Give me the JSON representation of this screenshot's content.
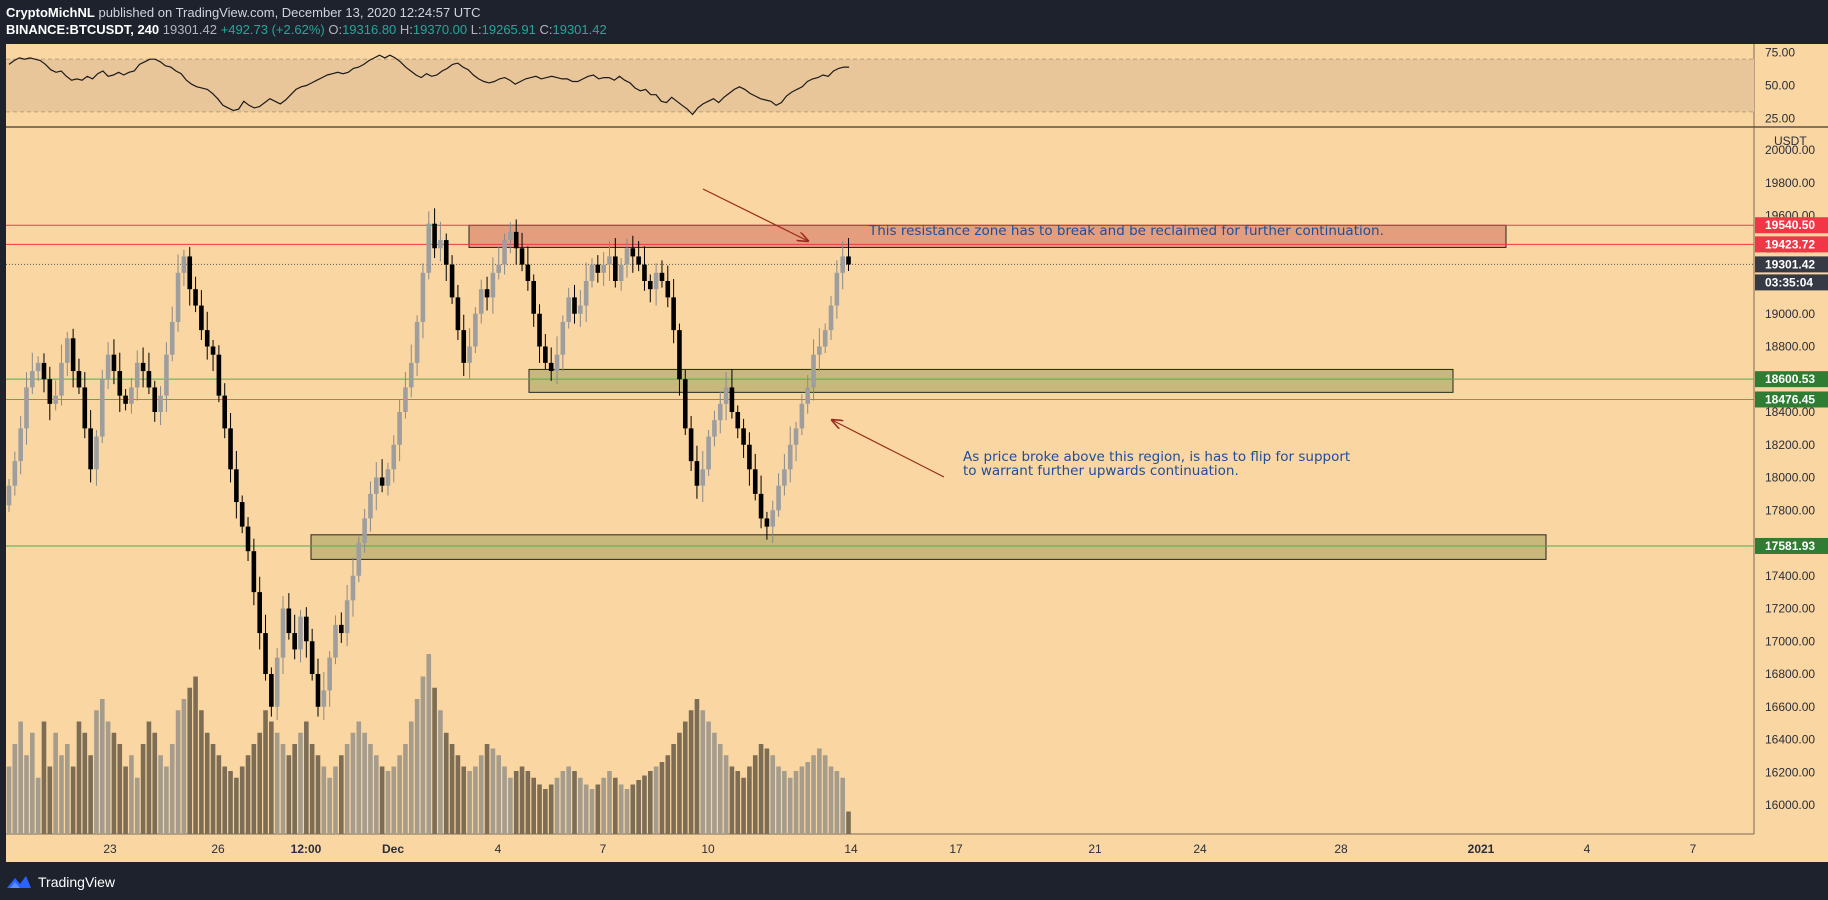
{
  "header": {
    "author": "CryptoMichNL",
    "published_text": "published on TradingView.com, December 13, 2020 12:24:57 UTC",
    "symbol": "BINANCE:BTCUSDT, 240",
    "price": "19301.42",
    "change": "+492.73 (+2.62%)",
    "o_label": "O:",
    "o_value": "19316.80",
    "h_label": "H:",
    "h_value": "19370.00",
    "l_label": "L:",
    "l_value": "19265.91",
    "c_label": "C:",
    "c_value": "19301.42"
  },
  "footer": {
    "brand": "TradingView"
  },
  "colors": {
    "background": "#f9d6a2",
    "resistance_zone": "#e39b7c",
    "support_zone": "#c7b77a",
    "red_line": "#f23645",
    "green_line": "#4caf50",
    "candle_bull": "#9e9e9e",
    "candle_bear": "#000000"
  },
  "chart_data": [
    {
      "type": "line",
      "name": "rsi",
      "y_ticks": [
        "75.00",
        "50.00",
        "25.00"
      ],
      "ylim": [
        20,
        80
      ],
      "band": [
        30,
        70
      ],
      "values": [
        66,
        69,
        71,
        70,
        71,
        70,
        69,
        66,
        62,
        60,
        61,
        57,
        54,
        55,
        54,
        57,
        55,
        59,
        61,
        57,
        58,
        60,
        58,
        60,
        61,
        66,
        68,
        70,
        70,
        68,
        65,
        64,
        61,
        59,
        54,
        51,
        49,
        48,
        47,
        44,
        40,
        35,
        33,
        31,
        32,
        38,
        35,
        33,
        34,
        37,
        40,
        38,
        36,
        39,
        43,
        47,
        49,
        50,
        52,
        54,
        56,
        58,
        59,
        60,
        59,
        60,
        63,
        64,
        66,
        69,
        71,
        73,
        71,
        73,
        71,
        68,
        64,
        61,
        58,
        56,
        59,
        57,
        58,
        61,
        63,
        66,
        67,
        64,
        62,
        58,
        55,
        53,
        52,
        53,
        55,
        56,
        54,
        51,
        53,
        55,
        56,
        57,
        55,
        56,
        57,
        56,
        55,
        55,
        53,
        53,
        55,
        57,
        58,
        55,
        56,
        56,
        54,
        57,
        54,
        52,
        48,
        46,
        47,
        43,
        43,
        38,
        37,
        41,
        38,
        35,
        32,
        28,
        33,
        36,
        38,
        40,
        37,
        41,
        44,
        47,
        49,
        47,
        44,
        42,
        40,
        39,
        38,
        35,
        37,
        42,
        45,
        47,
        49,
        53,
        55,
        56,
        58,
        57,
        61,
        63,
        64,
        64
      ]
    },
    {
      "type": "candlestick",
      "name": "price",
      "currency": "USDT",
      "y_ticks": [
        "20000.00",
        "19800.00",
        "19600.00",
        "19400.00",
        "19200.00",
        "19000.00",
        "18800.00",
        "18600.00",
        "18400.00",
        "18200.00",
        "18000.00",
        "17800.00",
        "17600.00",
        "17400.00",
        "17200.00",
        "17000.00",
        "16800.00",
        "16600.00",
        "16400.00",
        "16200.00",
        "16000.00"
      ],
      "ylim": [
        15800,
        20250
      ],
      "x_labels": [
        "23",
        "26",
        "12:00",
        "Dec",
        "4",
        "7",
        "10",
        "14",
        "17",
        "21",
        "24",
        "28",
        "2021",
        "4",
        "7"
      ],
      "last_price_label": "19301.42",
      "countdown": "03:35:04",
      "level_labels": [
        {
          "value": 19540.5,
          "label": "19540.50",
          "kind": "resistance"
        },
        {
          "value": 19423.72,
          "label": "19423.72",
          "kind": "resistance"
        },
        {
          "value": 18600.53,
          "label": "18600.53",
          "kind": "support"
        },
        {
          "value": 18476.45,
          "label": "18476.45",
          "kind": "support"
        },
        {
          "value": 17581.93,
          "label": "17581.93",
          "kind": "support"
        }
      ],
      "zones": [
        {
          "kind": "resistance",
          "top": 19540,
          "bottom": 19405
        },
        {
          "kind": "support",
          "top": 18660,
          "bottom": 18520
        },
        {
          "kind": "support",
          "top": 17650,
          "bottom": 17500
        }
      ],
      "closes": [
        17950,
        18100,
        18300,
        18550,
        18650,
        18700,
        18600,
        18450,
        18500,
        18700,
        18850,
        18650,
        18550,
        18300,
        18050,
        18250,
        18600,
        18750,
        18650,
        18500,
        18450,
        18550,
        18700,
        18650,
        18550,
        18400,
        18500,
        18750,
        18950,
        19250,
        19350,
        19150,
        19050,
        18900,
        18800,
        18750,
        18500,
        18300,
        18050,
        17850,
        17700,
        17550,
        17300,
        17050,
        16800,
        16600,
        16900,
        17200,
        17050,
        16950,
        17150,
        17000,
        16800,
        16600,
        16700,
        16900,
        17100,
        17050,
        17250,
        17400,
        17600,
        17750,
        17900,
        18000,
        17950,
        18050,
        18200,
        18400,
        18550,
        18700,
        18950,
        19250,
        19550,
        19400,
        19450,
        19300,
        19100,
        18900,
        18700,
        18800,
        19000,
        19150,
        19100,
        19250,
        19300,
        19450,
        19500,
        19400,
        19300,
        19200,
        19000,
        18800,
        18700,
        18650,
        18750,
        18950,
        19100,
        19000,
        19050,
        19200,
        19300,
        19250,
        19300,
        19350,
        19200,
        19300,
        19400,
        19350,
        19300,
        19200,
        19150,
        19250,
        19200,
        19100,
        18900,
        18600,
        18300,
        18100,
        17950,
        18050,
        18250,
        18350,
        18450,
        18550,
        18400,
        18300,
        18200,
        18050,
        17900,
        17750,
        17700,
        17800,
        17950,
        18050,
        18200,
        18300,
        18450,
        18550,
        18750,
        18800,
        18900,
        19050,
        19250,
        19350,
        19301
      ],
      "volumes": [
        30,
        40,
        50,
        35,
        45,
        25,
        50,
        30,
        45,
        35,
        40,
        30,
        50,
        45,
        35,
        55,
        60,
        50,
        45,
        40,
        30,
        35,
        25,
        40,
        50,
        45,
        35,
        30,
        40,
        55,
        60,
        65,
        70,
        55,
        45,
        40,
        35,
        30,
        28,
        25,
        30,
        35,
        40,
        45,
        55,
        50,
        45,
        40,
        35,
        40,
        45,
        50,
        40,
        35,
        30,
        25,
        30,
        35,
        40,
        45,
        50,
        45,
        40,
        35,
        30,
        28,
        30,
        35,
        40,
        50,
        60,
        70,
        80,
        65,
        55,
        45,
        40,
        35,
        30,
        28,
        30,
        35,
        40,
        38,
        35,
        30,
        25,
        28,
        30,
        28,
        25,
        22,
        20,
        22,
        25,
        28,
        30,
        28,
        25,
        22,
        20,
        22,
        25,
        28,
        25,
        22,
        20,
        22,
        24,
        26,
        28,
        30,
        32,
        35,
        40,
        45,
        50,
        55,
        60,
        55,
        50,
        45,
        40,
        35,
        30,
        28,
        25,
        30,
        35,
        40,
        38,
        35,
        30,
        28,
        25,
        28,
        30,
        32,
        35,
        38,
        35,
        30,
        28,
        25,
        10
      ]
    }
  ],
  "annotations": {
    "resistance_text": "This resistance zone has to break and be reclaimed for further continuation.",
    "support_text_line1": "As price broke above this region, is has to flip for support",
    "support_text_line2": "to warrant further upwards continuation."
  }
}
